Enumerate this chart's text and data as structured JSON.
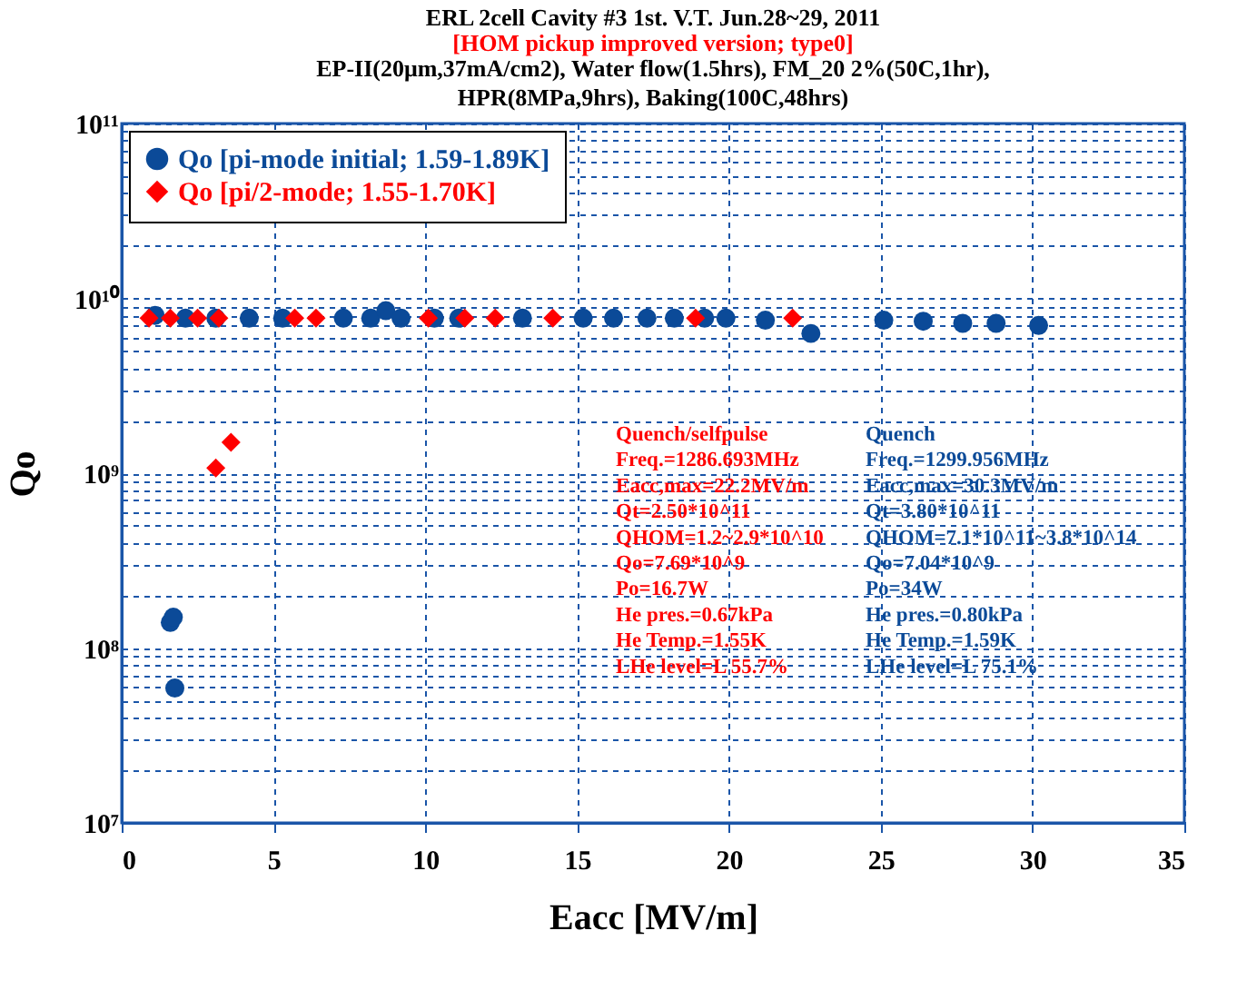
{
  "chart_data": {
    "type": "scatter",
    "title": "ERL 2cell Cavity #3 1st. V.T.  Jun.28~29, 2011",
    "subtitle": "[HOM pickup improved version; type0]",
    "xlabel": "Eacc [MV/m]",
    "ylabel": "Qo",
    "log": "y",
    "grid": true,
    "legend": "top left",
    "xlim": [
      0,
      35
    ],
    "xticks": [
      0,
      5,
      10,
      15,
      20,
      25,
      30,
      35
    ],
    "ylim": [
      10000000.0,
      100000000000.0
    ],
    "yticks": [
      {
        "value": 10000000.0,
        "label": "10⁷"
      },
      {
        "value": 20000000.0,
        "label": null
      },
      {
        "value": 30000000.0,
        "label": null
      },
      {
        "value": 40000000.0,
        "label": null
      },
      {
        "value": 50000000.0,
        "label": null
      },
      {
        "value": 60000000.0,
        "label": null
      },
      {
        "value": 70000000.0,
        "label": null
      },
      {
        "value": 80000000.0,
        "label": null
      },
      {
        "value": 90000000.0,
        "label": null
      },
      {
        "value": 100000000.0,
        "label": "10⁸"
      },
      {
        "value": 200000000.0,
        "label": null
      },
      {
        "value": 300000000.0,
        "label": null
      },
      {
        "value": 400000000.0,
        "label": null
      },
      {
        "value": 500000000.0,
        "label": null
      },
      {
        "value": 600000000.0,
        "label": null
      },
      {
        "value": 700000000.0,
        "label": null
      },
      {
        "value": 800000000.0,
        "label": null
      },
      {
        "value": 900000000.0,
        "label": null
      },
      {
        "value": 1000000000.0,
        "label": "10⁹"
      },
      {
        "value": 2000000000.0,
        "label": null
      },
      {
        "value": 3000000000.0,
        "label": null
      },
      {
        "value": 4000000000.0,
        "label": null
      },
      {
        "value": 5000000000.0,
        "label": null
      },
      {
        "value": 6000000000.0,
        "label": null
      },
      {
        "value": 7000000000.0,
        "label": null
      },
      {
        "value": 8000000000.0,
        "label": null
      },
      {
        "value": 9000000000.0,
        "label": null
      },
      {
        "value": 10000000000.0,
        "label": "10¹⁰"
      },
      {
        "value": 20000000000.0,
        "label": null
      },
      {
        "value": 30000000000.0,
        "label": null
      },
      {
        "value": 40000000000.0,
        "label": null
      },
      {
        "value": 50000000000.0,
        "label": null
      },
      {
        "value": 60000000000.0,
        "label": null
      },
      {
        "value": 70000000000.0,
        "label": null
      },
      {
        "value": 80000000000.0,
        "label": null
      },
      {
        "value": 90000000000.0,
        "label": null
      },
      {
        "value": 100000000000.0,
        "label": "10¹¹"
      }
    ],
    "series": [
      {
        "name": "Qo [pi-mode initial; 1.59-1.89K]",
        "color": "#0b4a98",
        "marker": "circle",
        "x": [
          1.1,
          2.1,
          3.1,
          4.2,
          5.3,
          7.3,
          8.2,
          8.7,
          9.2,
          10.3,
          11.1,
          13.2,
          15.2,
          16.2,
          17.3,
          18.2,
          19.2,
          19.9,
          21.2,
          22.7,
          25.1,
          26.4,
          27.7,
          28.8,
          30.2,
          1.6,
          1.7,
          1.75
        ],
        "values": [
          8000000000.0,
          7700000000.0,
          7700000000.0,
          7700000000.0,
          7700000000.0,
          7700000000.0,
          7700000000.0,
          8500000000.0,
          7700000000.0,
          7700000000.0,
          7700000000.0,
          7700000000.0,
          7700000000.0,
          7700000000.0,
          7700000000.0,
          7700000000.0,
          7700000000.0,
          7700000000.0,
          7500000000.0,
          6300000000.0,
          7500000000.0,
          7400000000.0,
          7200000000.0,
          7200000000.0,
          7000000000.0,
          140000000.0,
          150000000.0,
          59000000.0
        ]
      },
      {
        "name": "Qo [pi/2-mode; 1.55-1.70K]",
        "color": "#ff0000",
        "marker": "diamond",
        "x": [
          0.9,
          1.6,
          2.5,
          3.2,
          5.7,
          6.4,
          10.1,
          11.3,
          12.3,
          14.2,
          18.9,
          22.1,
          3.1,
          3.6
        ],
        "values": [
          7700000000.0,
          7700000000.0,
          7700000000.0,
          7700000000.0,
          7700000000.0,
          7700000000.0,
          7700000000.0,
          7700000000.0,
          7700000000.0,
          7700000000.0,
          7700000000.0,
          7700000000.0,
          1070000000.0,
          1500000000.0
        ]
      }
    ],
    "annotations": [
      "EP-II(20μm,37mA/cm2), Water flow(1.5hrs), FM_20 2%(50C,1hr),\nHPR(8MPa,9hrs), Baking(100C,48hrs)",
      "Quench/selfpulse\nFreq.=1286.693MHz\nEacc,max=22.2MV/m\nQt=2.50*10^11\nQHOM=1.2~2.9*10^10\nQo=7.69*10^9\nPo=16.7W\nHe pres.=0.67kPa\nHe Temp.=1.55K\nLHe level=L 55.7%",
      "Quench\nFreq.=1299.956MHz\nEacc,max=30.3MV/m\nQt=3.80*10^11\nQHOM=7.1*10^11~3.8*10^14\nQo=7.04*10^9\nPo=34W\nHe pres.=0.80kPa\nHe Temp.=1.59K\nLHe level=L 75.1%"
    ]
  }
}
